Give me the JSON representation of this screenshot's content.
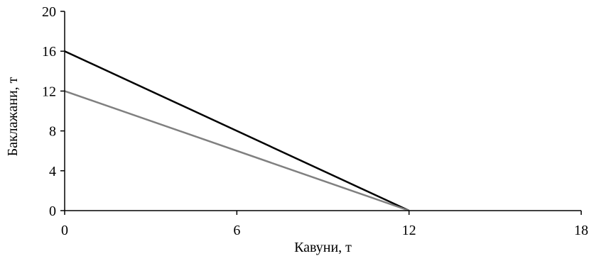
{
  "chart_data": {
    "type": "line",
    "xlabel": "Кавуни, т",
    "ylabel": "Баклажани, т",
    "xlim": [
      0,
      18
    ],
    "ylim": [
      0,
      20
    ],
    "xticks": [
      0,
      6,
      12,
      18
    ],
    "yticks": [
      0,
      4,
      8,
      12,
      16,
      20
    ],
    "grid": false,
    "series": [
      {
        "color": "#000000",
        "x": [
          0,
          12
        ],
        "y": [
          16,
          0
        ]
      },
      {
        "color": "#808080",
        "x": [
          0,
          12
        ],
        "y": [
          12,
          0
        ]
      }
    ]
  }
}
